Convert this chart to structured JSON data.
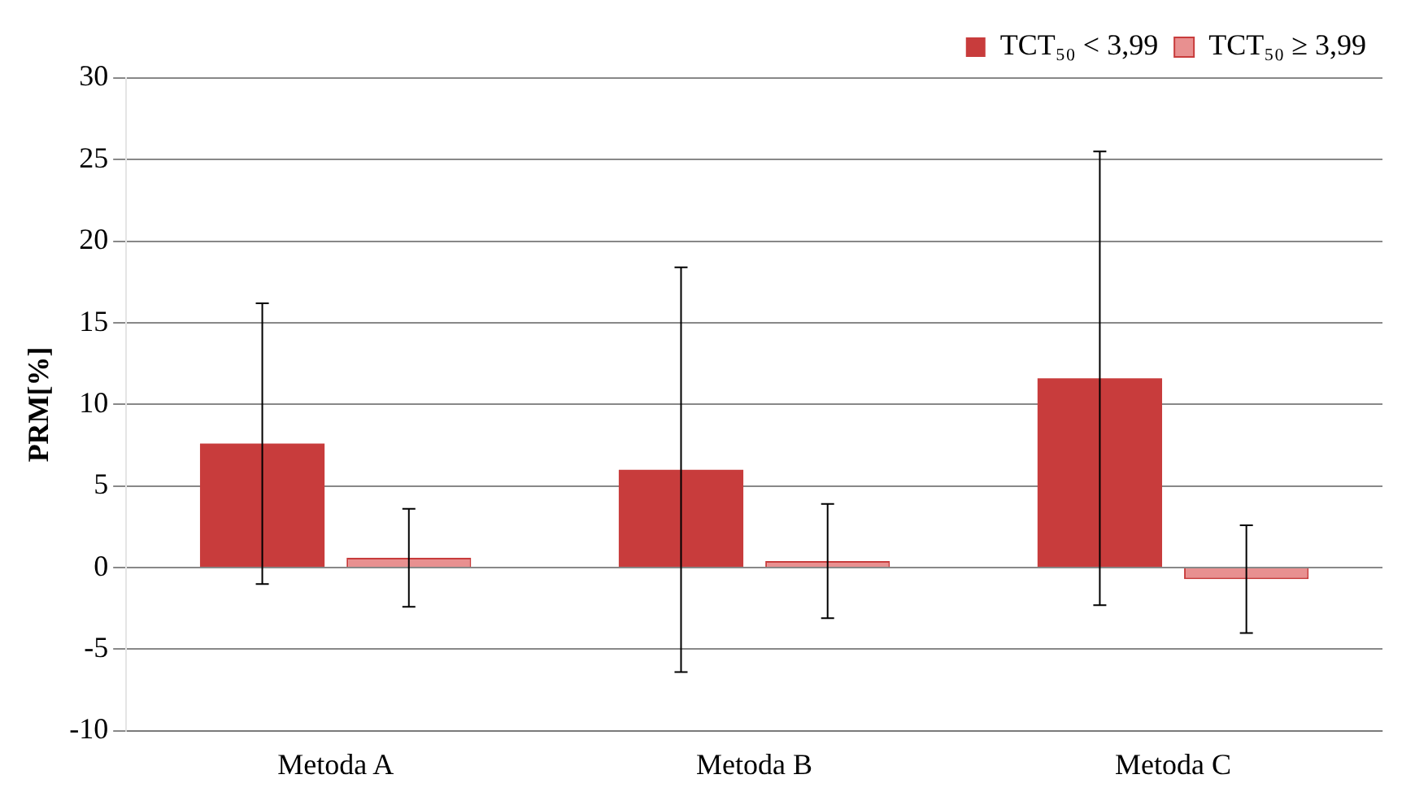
{
  "chart_data": {
    "type": "bar",
    "ylabel": "PRM[%]",
    "categories": [
      "Metoda A",
      "Metoda B",
      "Metoda C"
    ],
    "series": [
      {
        "name": "TCT₅₀ < 3,99",
        "color": "#c83c3c",
        "values": [
          7.6,
          6.0,
          11.6
        ],
        "errors": [
          8.6,
          12.4,
          13.9
        ]
      },
      {
        "name": "TCT₅₀ ≥ 3,99",
        "color": "#e89090",
        "values": [
          0.6,
          0.4,
          -0.7
        ],
        "errors": [
          3.0,
          3.5,
          3.3
        ]
      }
    ],
    "ylim": [
      -10,
      30
    ],
    "yticks": [
      -10,
      -5,
      0,
      5,
      10,
      15,
      20,
      25,
      30
    ],
    "grid": "y",
    "legend": "top right"
  }
}
